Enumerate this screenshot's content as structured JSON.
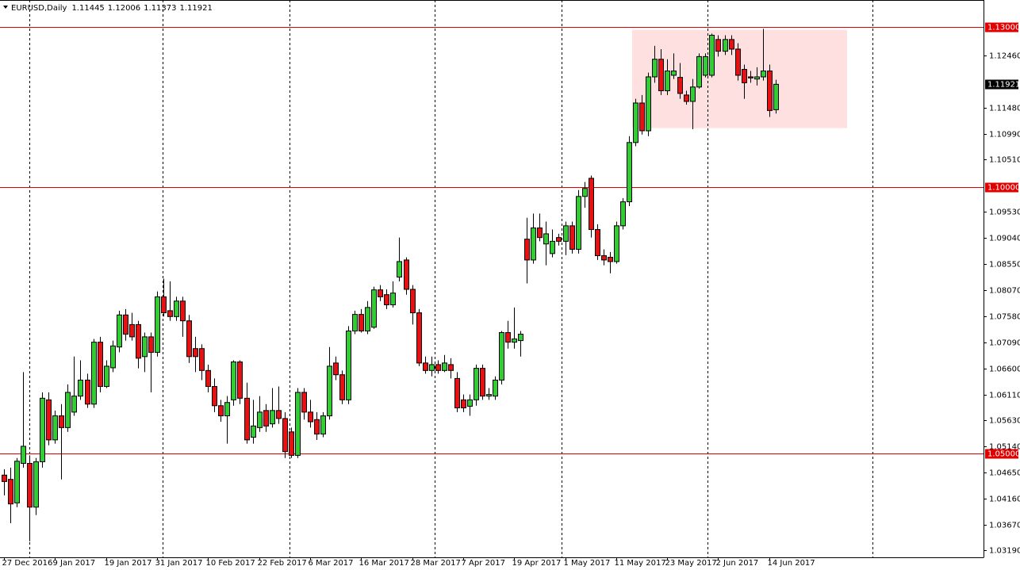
{
  "chart_data": {
    "type": "candlestick",
    "symbol": "EURUSD,Daily",
    "up_color": "#32cd32",
    "down_color": "#e81010",
    "categories": [
      "27 Dec 2016",
      null,
      null,
      null,
      null,
      null,
      null,
      null,
      "9 Jan 2017",
      null,
      null,
      null,
      null,
      null,
      null,
      null,
      "19 Jan 2017",
      null,
      null,
      null,
      null,
      null,
      null,
      null,
      "31 Jan 2017",
      null,
      null,
      null,
      null,
      null,
      null,
      null,
      "10 Feb 2017",
      null,
      null,
      null,
      null,
      null,
      null,
      null,
      "22 Feb 2017",
      null,
      null,
      null,
      null,
      null,
      null,
      null,
      "6 Mar 2017",
      null,
      null,
      null,
      null,
      null,
      null,
      null,
      "16 Mar 2017",
      null,
      null,
      null,
      null,
      null,
      null,
      null,
      "28 Mar 2017",
      null,
      null,
      null,
      null,
      null,
      null,
      null,
      "7 Apr 2017",
      null,
      null,
      null,
      null,
      null,
      null,
      null,
      "19 Apr 2017",
      null,
      null,
      null,
      null,
      null,
      null,
      null,
      "1 May 2017",
      null,
      null,
      null,
      null,
      null,
      null,
      null,
      "11 May 2017",
      null,
      null,
      null,
      null,
      null,
      null,
      null,
      "23 May 2017",
      null,
      null,
      null,
      null,
      null,
      null,
      null,
      "2 Jun 2017",
      null,
      null,
      null,
      null,
      null,
      null,
      null,
      "14 Jun 2017",
      null
    ],
    "open": [
      1.046,
      1.0452,
      1.0408,
      1.0482,
      1.0482,
      1.04,
      1.0485,
      1.0601,
      1.0526,
      1.0571,
      1.0549,
      1.0578,
      1.0608,
      1.0638,
      1.0593,
      1.0709,
      1.0626,
      1.0661,
      1.07,
      1.076,
      1.0742,
      1.0742,
      1.0682,
      1.0719,
      1.069,
      1.0794,
      1.0768,
      1.0757,
      1.0786,
      1.0749,
      1.0697,
      1.0697,
      1.0656,
      1.0626,
      1.059,
      1.0571,
      1.0601,
      1.0672,
      1.0604,
      1.0531,
      1.0549,
      1.0581,
      1.0556,
      1.0581,
      1.0566,
      1.0541,
      1.0497,
      1.0615,
      1.0578,
      1.0564,
      1.0537,
      1.0571,
      1.067,
      1.0648,
      1.0601,
      1.073,
      1.0761,
      1.073,
      1.0737,
      1.0807,
      1.0798,
      1.0779,
      1.0831,
      1.0863,
      1.0808,
      1.0764,
      1.067,
      1.0656,
      1.0667,
      1.0656,
      1.0667,
      1.0641,
      1.0601,
      1.0589,
      1.0601,
      1.066,
      1.0608,
      1.0608,
      1.0638,
      1.0727,
      1.0709,
      1.0712,
      1.0902,
      1.0863,
      1.0923,
      1.0893,
      1.0875,
      1.0905,
      1.0898,
      1.0927,
      1.0883,
      1.0982,
      1.1016,
      1.092,
      1.0871,
      1.0868,
      1.086,
      1.0927,
      1.0972,
      1.1083,
      1.1157,
      1.1105,
      1.1206,
      1.1239,
      1.118,
      1.1209,
      1.1205,
      1.1172,
      1.116,
      1.1187,
      1.1209,
      1.1209,
      1.1276,
      1.1254,
      1.1276,
      1.1258,
      1.122,
      1.1206,
      1.1202,
      1.1206,
      1.1217,
      1.11445
    ],
    "high": [
      1.0471,
      1.0474,
      1.0492,
      1.0653,
      1.0497,
      1.0492,
      1.0615,
      1.0615,
      1.0581,
      1.0593,
      1.063,
      1.0682,
      1.0675,
      1.065,
      1.0715,
      1.0719,
      1.0675,
      1.0712,
      1.0768,
      1.0771,
      1.0764,
      1.0749,
      1.0727,
      1.0727,
      1.0804,
      1.0828,
      1.0823,
      1.0794,
      1.0794,
      1.076,
      1.0719,
      1.0705,
      1.0667,
      1.0641,
      1.0601,
      1.0608,
      1.0675,
      1.0675,
      1.0633,
      1.0601,
      1.0608,
      1.0593,
      1.0623,
      1.0626,
      1.0578,
      1.0549,
      1.0623,
      1.0623,
      1.0601,
      1.0578,
      1.0578,
      1.07,
      1.0682,
      1.0656,
      1.0739,
      1.0768,
      1.0771,
      1.0786,
      1.0813,
      1.0816,
      1.0808,
      1.0823,
      1.0905,
      1.0868,
      1.0816,
      1.0771,
      1.0682,
      1.0682,
      1.0675,
      1.0685,
      1.0679,
      1.0653,
      1.0611,
      1.0611,
      1.0667,
      1.0667,
      1.0623,
      1.0645,
      1.073,
      1.0749,
      1.0774,
      1.073,
      1.0942,
      1.095,
      1.095,
      1.0935,
      1.092,
      1.0912,
      1.0935,
      1.0935,
      1.0994,
      1.1009,
      1.1021,
      1.093,
      1.0883,
      1.0878,
      1.0935,
      1.0979,
      1.1095,
      1.1165,
      1.1172,
      1.1214,
      1.1264,
      1.1258,
      1.1239,
      1.125,
      1.1232,
      1.118,
      1.1202,
      1.125,
      1.125,
      1.1287,
      1.1284,
      1.1284,
      1.1284,
      1.1269,
      1.1229,
      1.1217,
      1.1224,
      1.1296,
      1.1229,
      1.12006
    ],
    "low": [
      1.0422,
      1.037,
      1.04,
      1.0474,
      1.0336,
      1.0385,
      1.0474,
      1.0516,
      1.0519,
      1.0452,
      1.0541,
      1.0571,
      1.0601,
      1.0586,
      1.0586,
      1.0615,
      1.0623,
      1.0653,
      1.069,
      1.0712,
      1.0712,
      1.066,
      1.0653,
      1.0615,
      1.0682,
      1.0757,
      1.0749,
      1.0749,
      1.0719,
      1.067,
      1.0653,
      1.0638,
      1.0615,
      1.0578,
      1.056,
      1.0519,
      1.059,
      1.0593,
      1.0519,
      1.0519,
      1.0541,
      1.0541,
      1.0549,
      1.0556,
      1.0492,
      1.0492,
      1.0492,
      1.0564,
      1.0549,
      1.0526,
      1.0531,
      1.0564,
      1.0638,
      1.0593,
      1.0593,
      1.0724,
      1.0727,
      1.0724,
      1.0734,
      1.0786,
      1.0771,
      1.0774,
      1.0823,
      1.0798,
      1.0742,
      1.0664,
      1.065,
      1.0645,
      1.065,
      1.0653,
      1.0641,
      1.0578,
      1.0578,
      1.0571,
      1.059,
      1.0601,
      1.0601,
      1.0601,
      1.063,
      1.0697,
      1.0697,
      1.0682,
      1.0819,
      1.0856,
      1.0898,
      1.0853,
      1.0868,
      1.089,
      1.0872,
      1.0875,
      1.0875,
      1.0961,
      1.0905,
      1.0863,
      1.0853,
      1.0838,
      1.0856,
      1.092,
      1.0964,
      1.1076,
      1.1098,
      1.1095,
      1.1195,
      1.1172,
      1.1172,
      1.1202,
      1.1165,
      1.1154,
      1.1108,
      1.1184,
      1.1205,
      1.1205,
      1.1244,
      1.1247,
      1.1247,
      1.1199,
      1.1165,
      1.1195,
      1.119,
      1.1199,
      1.1131,
      1.11373
    ],
    "close": [
      1.0448,
      1.0406,
      1.0486,
      1.0514,
      1.04,
      1.0485,
      1.0604,
      1.0526,
      1.0571,
      1.0549,
      1.0615,
      1.0608,
      1.0638,
      1.0593,
      1.0709,
      1.0626,
      1.0664,
      1.0702,
      1.076,
      1.0724,
      1.0719,
      1.0679,
      1.0719,
      1.069,
      1.0794,
      1.0764,
      1.0757,
      1.0786,
      1.0749,
      1.0682,
      1.0682,
      1.0656,
      1.0626,
      1.059,
      1.0571,
      1.0596,
      1.0672,
      1.0604,
      1.0526,
      1.0552,
      1.0578,
      1.0552,
      1.0581,
      1.0566,
      1.0504,
      1.0497,
      1.0615,
      1.0578,
      1.056,
      1.0537,
      1.0571,
      1.0664,
      1.0648,
      1.0601,
      1.073,
      1.0761,
      1.073,
      1.0774,
      1.0807,
      1.0794,
      1.0779,
      1.0801,
      1.086,
      1.0808,
      1.0764,
      1.067,
      1.0656,
      1.0667,
      1.0656,
      1.067,
      1.0656,
      1.0586,
      1.0586,
      1.0601,
      1.066,
      1.0608,
      1.0611,
      1.0638,
      1.0727,
      1.0709,
      1.0715,
      1.0724,
      1.0863,
      1.0923,
      1.0905,
      1.0912,
      1.0898,
      1.0898,
      1.0927,
      1.0883,
      1.0982,
      1.0997,
      1.092,
      1.0871,
      1.0863,
      1.086,
      1.0927,
      1.0972,
      1.1083,
      1.1157,
      1.1105,
      1.1206,
      1.1239,
      1.118,
      1.1217,
      1.1217,
      1.1175,
      1.116,
      1.1187,
      1.1244,
      1.1244,
      1.1284,
      1.1254,
      1.1276,
      1.1258,
      1.1209,
      1.1195,
      1.1204,
      1.1206,
      1.1217,
      1.1143,
      1.11921
    ],
    "ylim": [
      1.0306,
      1.135
    ],
    "yticks": [
      {
        "value": 1.1246,
        "label": "1.12460"
      },
      {
        "value": 1.1148,
        "label": "1.11480"
      },
      {
        "value": 1.1099,
        "label": "1.10990"
      },
      {
        "value": 1.1051,
        "label": "1.10510"
      },
      {
        "value": 1.0953,
        "label": "1.09530"
      },
      {
        "value": 1.0904,
        "label": "1.09040"
      },
      {
        "value": 1.0855,
        "label": "1.08550"
      },
      {
        "value": 1.0807,
        "label": "1.08070"
      },
      {
        "value": 1.0758,
        "label": "1.07580"
      },
      {
        "value": 1.0709,
        "label": "1.07090"
      },
      {
        "value": 1.066,
        "label": "1.06600"
      },
      {
        "value": 1.0611,
        "label": "1.06110"
      },
      {
        "value": 1.0563,
        "label": "1.05630"
      },
      {
        "value": 1.0514,
        "label": "1.05140"
      },
      {
        "value": 1.0465,
        "label": "1.04650"
      },
      {
        "value": 1.0416,
        "label": "1.04160"
      },
      {
        "value": 1.0367,
        "label": "1.03670"
      },
      {
        "value": 1.0319,
        "label": "1.03190"
      }
    ],
    "hlines": [
      {
        "value": 1.13,
        "label": "1.13000"
      },
      {
        "value": 1.1,
        "label": "1.10000"
      },
      {
        "value": 1.05,
        "label": "1.05000"
      }
    ],
    "hline_color": "#e00000",
    "zone": {
      "ylim": [
        1.111,
        1.1294
      ],
      "color": "#ffe0e0"
    }
  }
}
